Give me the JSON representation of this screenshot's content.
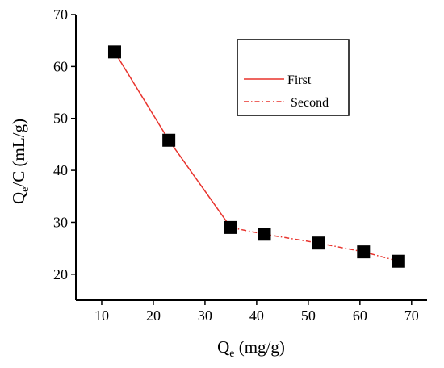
{
  "chart_data": {
    "type": "scatter",
    "xlabel": {
      "base": "Q",
      "sub": "e",
      "rest": " (mg/g)"
    },
    "ylabel": {
      "base": "Q",
      "sub": "e",
      "rest": "/C (mL/g)"
    },
    "xlim": [
      5,
      73
    ],
    "ylim": [
      15,
      70
    ],
    "xticks": [
      10,
      20,
      30,
      40,
      50,
      60,
      70
    ],
    "yticks": [
      20,
      30,
      40,
      50,
      60,
      70
    ],
    "points": {
      "x": [
        12.5,
        23,
        35,
        41.5,
        52,
        60.7,
        67.5
      ],
      "y": [
        62.8,
        45.8,
        29,
        27.7,
        26,
        24.3,
        22.5
      ]
    },
    "series": [
      {
        "name": "First",
        "style": "solid",
        "color": "#e8322c",
        "x": [
          12.5,
          23,
          35
        ],
        "y": [
          62.8,
          45.8,
          29
        ]
      },
      {
        "name": "Second",
        "style": "dash-dot",
        "color": "#e8322c",
        "x": [
          35,
          41.5,
          52,
          60.7,
          67.5
        ],
        "y": [
          29,
          27.7,
          26,
          24.3,
          22.5
        ]
      }
    ],
    "grid": false,
    "legend_position": "top-right"
  }
}
